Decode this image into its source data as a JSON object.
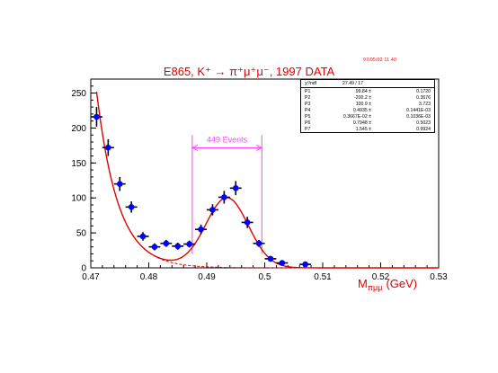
{
  "header": {
    "stamp": "97/05/02   11.40",
    "title": "E865, K⁺ → π⁺μ⁺μ⁻, 1997 DATA"
  },
  "fit_box": {
    "chi2_label": "χ²/ndf",
    "chi2_value": "27.49  /  17",
    "params": [
      {
        "name": "P1",
        "value": "99.84",
        "error": "0.1720"
      },
      {
        "name": "P2",
        "value": "-200.2",
        "error": "0.3676"
      },
      {
        "name": "P3",
        "value": "100.9",
        "error": "3.723"
      },
      {
        "name": "P4",
        "value": "0.4935",
        "error": "0.1441E-03"
      },
      {
        "name": "P5",
        "value": "0.3667E-02",
        "error": "0.1036E-03"
      },
      {
        "name": "P6",
        "value": "0.7948",
        "error": "0.5023"
      },
      {
        "name": "P7",
        "value": "1.545",
        "error": "0.9924"
      }
    ],
    "pm": "±"
  },
  "colors": {
    "fit": "#e00000",
    "points": "#0000ff",
    "annotation": "#ff44ff",
    "axis": "#000000",
    "xlabel": "#e00000"
  },
  "chart_data": {
    "type": "scatter",
    "title": "E865, K⁺ → π⁺μ⁺μ⁻, 1997 DATA",
    "xlabel": "Mπμμ (GeV)",
    "xlabel_main": "M",
    "xlabel_sub": "πμμ",
    "xlabel_unit": "(GeV)",
    "ylabel": "",
    "xlim": [
      0.47,
      0.53
    ],
    "ylim": [
      0,
      270
    ],
    "xticks": [
      "0.47",
      "0.48",
      "0.49",
      "0.5",
      "0.51",
      "0.52",
      "0.53"
    ],
    "xtick_values": [
      0.47,
      0.48,
      0.49,
      0.5,
      0.51,
      0.52,
      0.53
    ],
    "yticks": [
      "0",
      "50",
      "100",
      "150",
      "200",
      "250"
    ],
    "ytick_values": [
      0,
      50,
      100,
      150,
      200,
      250
    ],
    "grid": false,
    "legend": "none",
    "points": [
      {
        "x": 0.471,
        "y": 216,
        "xerr": 0.001,
        "yerr": 14
      },
      {
        "x": 0.473,
        "y": 172,
        "xerr": 0.001,
        "yerr": 12
      },
      {
        "x": 0.475,
        "y": 120,
        "xerr": 0.001,
        "yerr": 10
      },
      {
        "x": 0.477,
        "y": 87,
        "xerr": 0.001,
        "yerr": 8
      },
      {
        "x": 0.479,
        "y": 45,
        "xerr": 0.001,
        "yerr": 6
      },
      {
        "x": 0.481,
        "y": 30,
        "xerr": 0.001,
        "yerr": 5
      },
      {
        "x": 0.483,
        "y": 35,
        "xerr": 0.001,
        "yerr": 5
      },
      {
        "x": 0.485,
        "y": 31,
        "xerr": 0.001,
        "yerr": 5
      },
      {
        "x": 0.487,
        "y": 34,
        "xerr": 0.001,
        "yerr": 5
      },
      {
        "x": 0.489,
        "y": 55,
        "xerr": 0.001,
        "yerr": 7
      },
      {
        "x": 0.491,
        "y": 83,
        "xerr": 0.001,
        "yerr": 8
      },
      {
        "x": 0.493,
        "y": 101,
        "xerr": 0.001,
        "yerr": 9
      },
      {
        "x": 0.495,
        "y": 114,
        "xerr": 0.001,
        "yerr": 10
      },
      {
        "x": 0.497,
        "y": 65,
        "xerr": 0.001,
        "yerr": 8
      },
      {
        "x": 0.499,
        "y": 35,
        "xerr": 0.001,
        "yerr": 5
      },
      {
        "x": 0.501,
        "y": 13,
        "xerr": 0.001,
        "yerr": 3
      },
      {
        "x": 0.503,
        "y": 7,
        "xerr": 0.001,
        "yerr": 2
      },
      {
        "x": 0.507,
        "y": 5,
        "xerr": 0.001,
        "yerr": 2
      }
    ],
    "fit": {
      "exp_amp": 252,
      "exp_x0": 0.471,
      "exp_decay": 0.0037,
      "gauss_amp": 99.84,
      "gauss_mean": 0.4935,
      "gauss_sigma": 0.003667,
      "x_range": [
        0.471,
        0.53
      ]
    },
    "annotation": {
      "text": "449 Events",
      "x_from": 0.4875,
      "x_to": 0.4995,
      "y": 182
    }
  }
}
